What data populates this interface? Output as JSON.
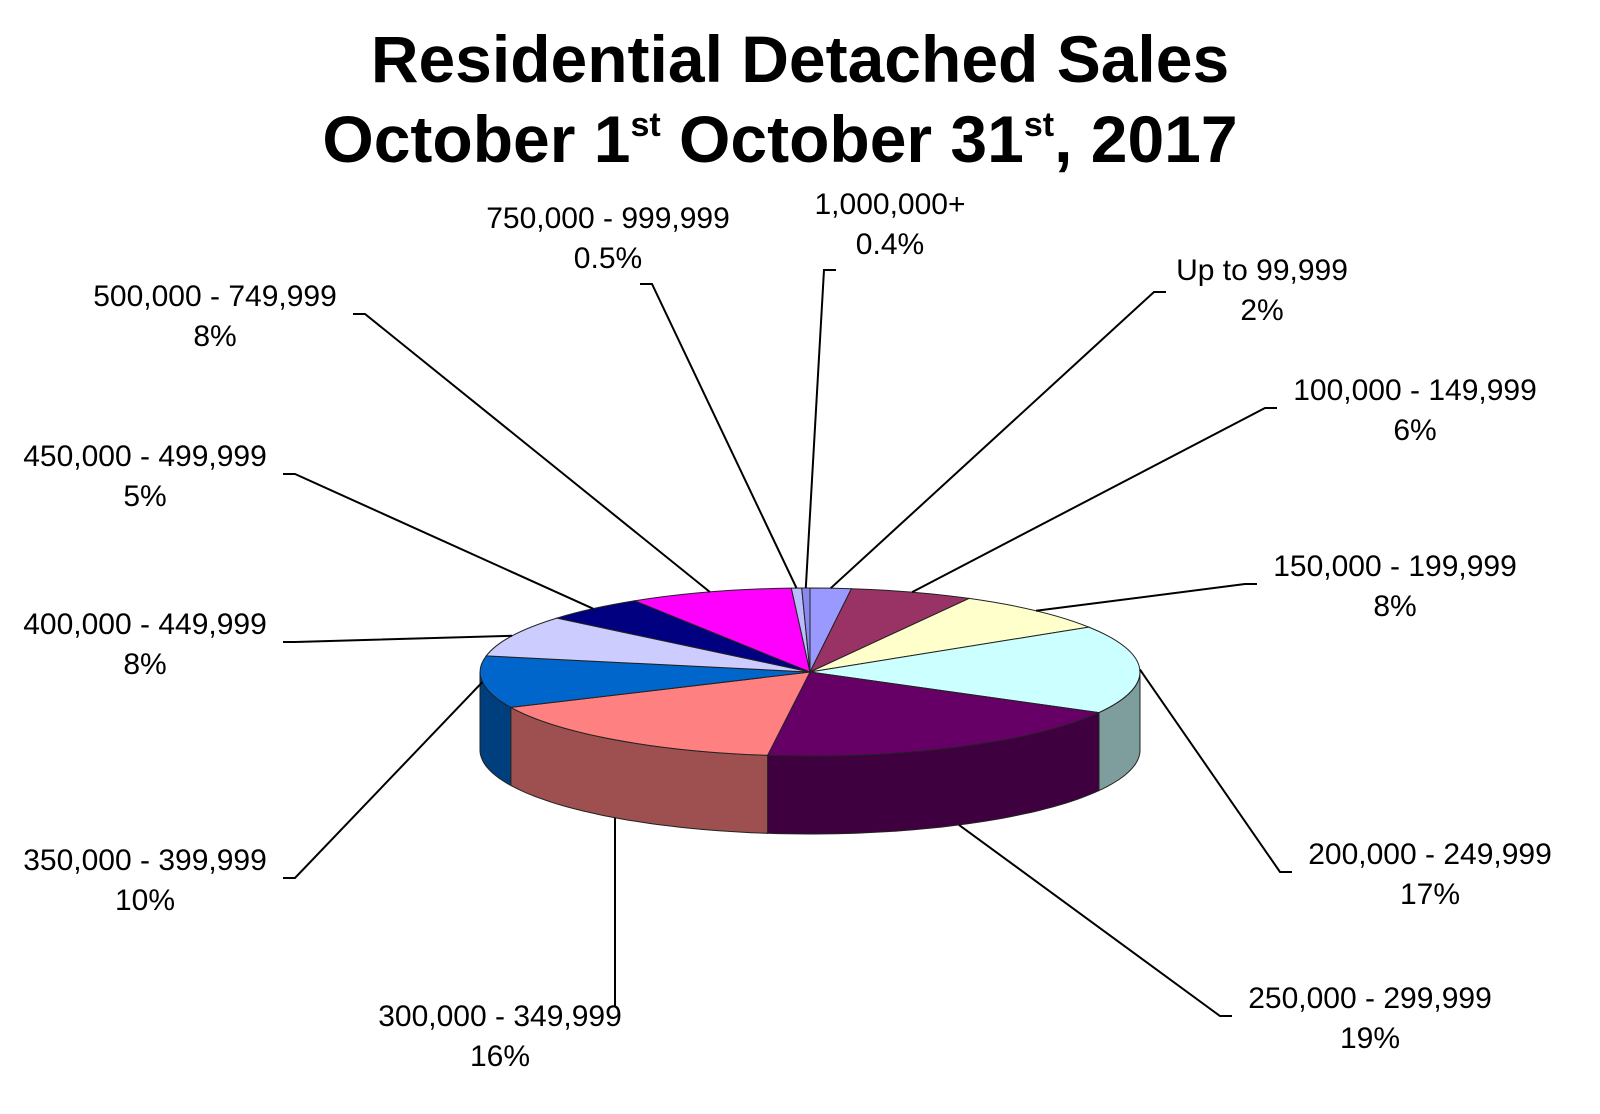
{
  "chart_data": {
    "type": "pie",
    "title": {
      "line1": "Residential Detached Sales",
      "line2_part1": "October 1",
      "line2_sup1": "st",
      "line2_part2": " October 31",
      "line2_sup2": "st",
      "line2_part3": ", 2017"
    },
    "three_d": true,
    "slices": [
      {
        "label": "Up to 99,999",
        "percent_text": "2%",
        "value": 2,
        "color": "#9999ff"
      },
      {
        "label": "100,000 - 149,999",
        "percent_text": "6%",
        "value": 6,
        "color": "#993366"
      },
      {
        "label": "150,000 - 199,999",
        "percent_text": "8%",
        "value": 8,
        "color": "#ffffcc"
      },
      {
        "label": "200,000 - 249,999",
        "percent_text": "17%",
        "value": 17,
        "color": "#ccffff"
      },
      {
        "label": "250,000 - 299,999",
        "percent_text": "19%",
        "value": 19,
        "color": "#660066"
      },
      {
        "label": "300,000 - 349,999",
        "percent_text": "16%",
        "value": 16,
        "color": "#ff8080"
      },
      {
        "label": "350,000 - 399,999",
        "percent_text": "10%",
        "value": 10,
        "color": "#0066cc"
      },
      {
        "label": "400,000 - 449,999",
        "percent_text": "8%",
        "value": 8,
        "color": "#ccccff"
      },
      {
        "label": "450,000 - 499,999",
        "percent_text": "5%",
        "value": 5,
        "color": "#000080"
      },
      {
        "label": "500,000 - 749,999",
        "percent_text": "8%",
        "value": 8,
        "color": "#ff00ff"
      },
      {
        "label": "750,000 - 999,999",
        "percent_text": "0.5%",
        "value": 0.5,
        "color": "#bbbbff"
      },
      {
        "label": "1,000,000+",
        "percent_text": "0.4%",
        "value": 0.4,
        "color": "#8888ee"
      }
    ]
  }
}
